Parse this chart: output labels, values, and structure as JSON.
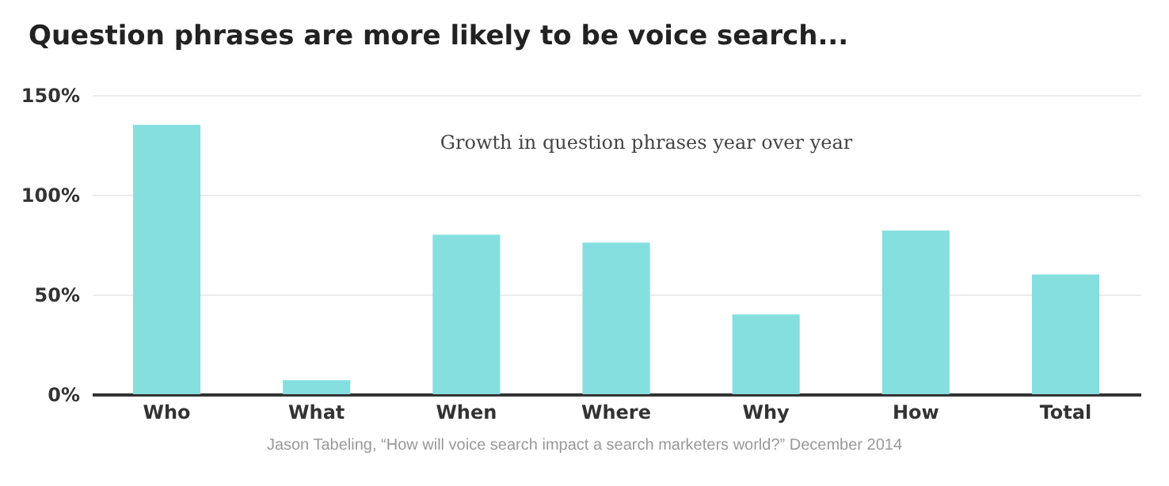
{
  "chart_data": {
    "type": "bar",
    "title": "Question phrases are more likely to be voice search...",
    "categories": [
      "Who",
      "What",
      "When",
      "Where",
      "Why",
      "How",
      "Total"
    ],
    "values": [
      135,
      7,
      80,
      76,
      40,
      82,
      60
    ],
    "color": "#85dfdf",
    "ylim": [
      0,
      150
    ],
    "yticks": [
      {
        "value": 0,
        "label": "0%"
      },
      {
        "value": 50,
        "label": "50%"
      },
      {
        "value": 100,
        "label": "100%"
      },
      {
        "value": 150,
        "label": "150%"
      }
    ],
    "grid": "y",
    "annotations": [
      "Growth in question phrases year over year",
      "Jason Tabeling, “How will voice search impact a search marketers world?” December 2014"
    ]
  }
}
